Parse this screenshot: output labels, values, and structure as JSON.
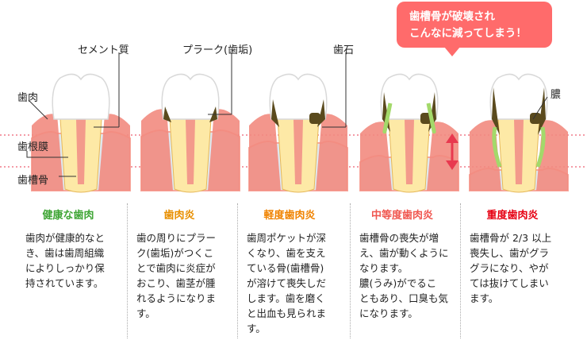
{
  "annotations": {
    "cementum": "セメント質",
    "plaque": "プラーク(歯垢)",
    "tartar": "歯石",
    "gum": "歯肉",
    "ligament": "歯根膜",
    "alveolar_bone": "歯槽骨",
    "pus": "膿"
  },
  "callout": {
    "line1": "歯槽骨が破壊され",
    "line2": "こんなに減ってしまう！"
  },
  "stages": [
    {
      "title": "健康な歯肉",
      "color": "#3fa535",
      "lines": [
        "歯肉が健康的なと",
        "き、歯は歯周組織",
        "によりしっかり保",
        "持されています。"
      ]
    },
    {
      "title": "歯肉炎",
      "color": "#e88f00",
      "lines": [
        "歯の周りにプラー",
        "ク(歯垢)がつくこ",
        "とで歯肉に炎症が",
        "おこり、歯茎が腫",
        "れるようになりま",
        "す。"
      ]
    },
    {
      "title": "軽度歯肉炎",
      "color": "#f08300",
      "lines": [
        "歯周ポケットが深",
        "くなり、歯を支え",
        "ている骨(歯槽骨)",
        "が溶けて喪失しだ",
        "します。歯を磨く",
        "と出血も見られま",
        "す。"
      ]
    },
    {
      "title": "中等度歯肉炎",
      "color": "#f0564f",
      "lines": [
        "歯槽骨の喪失が増",
        "え、歯が動くように",
        "なります。",
        "膿(うみ)がでるこ",
        "ともあり、口臭も気",
        "になります。"
      ]
    },
    {
      "title": "重度歯肉炎",
      "color": "#e60012",
      "lines": [
        "歯槽骨が 2/3 以上",
        "喪失し、歯がグラ",
        "グラになり、やが",
        "ては抜けてしまい",
        "ます。"
      ]
    }
  ],
  "colors": {
    "bone": "#f7a79c",
    "gum": "#f28b7f",
    "tooth": "#ffffff",
    "root": "#fde9a6",
    "pulp": "#f39a8b",
    "plaque": "#5a4a1d",
    "pus": "#a3d96a",
    "guide": "#e8394f",
    "arrow": "#e8394f"
  }
}
